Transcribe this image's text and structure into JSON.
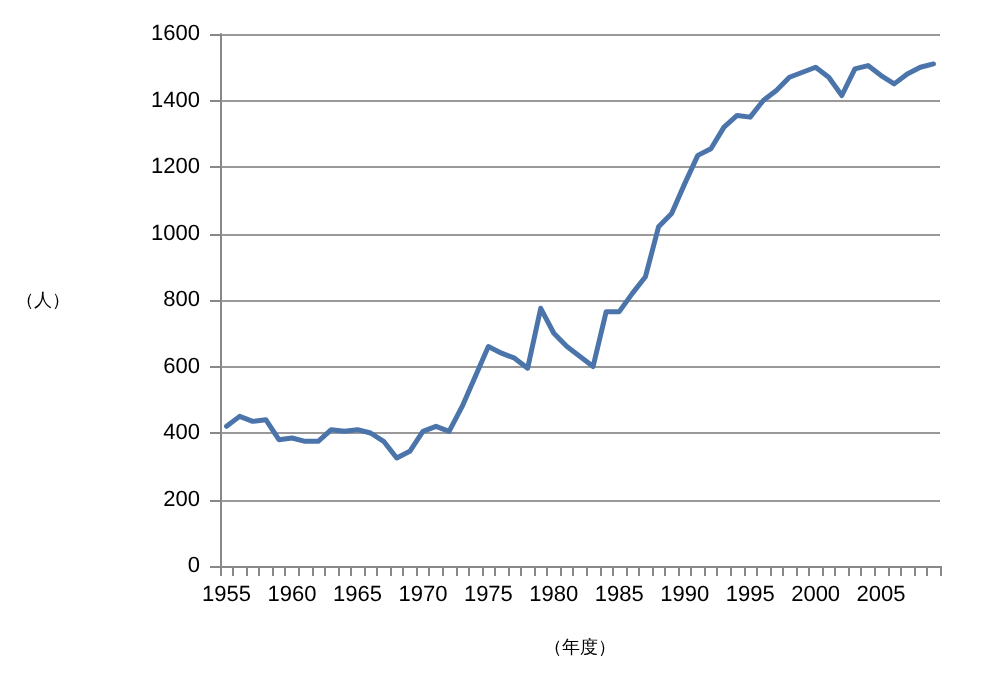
{
  "chart_data": {
    "type": "line",
    "categories": [
      "1955",
      null,
      null,
      null,
      null,
      "1960",
      null,
      null,
      null,
      null,
      "1965",
      null,
      null,
      null,
      null,
      "1970",
      null,
      null,
      null,
      null,
      "1975",
      null,
      null,
      null,
      null,
      "1980",
      null,
      null,
      null,
      null,
      "1985",
      null,
      null,
      null,
      null,
      "1990",
      null,
      null,
      null,
      null,
      "1995",
      null,
      null,
      null,
      null,
      "2000",
      null,
      null,
      null,
      null,
      "2005",
      null,
      null,
      null,
      null
    ],
    "series": [
      {
        "color": "#4a74aa",
        "values": [
          420,
          450,
          435,
          440,
          380,
          385,
          375,
          375,
          410,
          405,
          410,
          400,
          375,
          325,
          345,
          405,
          420,
          405,
          480,
          570,
          660,
          640,
          625,
          595,
          775,
          700,
          660,
          630,
          600,
          765,
          765,
          820,
          870,
          1020,
          1060,
          1150,
          1235,
          1255,
          1320,
          1355,
          1350,
          1400,
          1430,
          1470,
          1485,
          1500,
          1470,
          1415,
          1495,
          1505,
          1475,
          1450,
          1480,
          1500,
          1510
        ]
      }
    ],
    "xlabel": "（年度）",
    "ylabel": "（人）",
    "ylim": [
      0,
      1600
    ],
    "yticks": [
      0,
      200,
      400,
      600,
      800,
      1000,
      1200,
      1400,
      1600
    ],
    "grid": "y",
    "marker": "none",
    "line_style": "solid"
  }
}
